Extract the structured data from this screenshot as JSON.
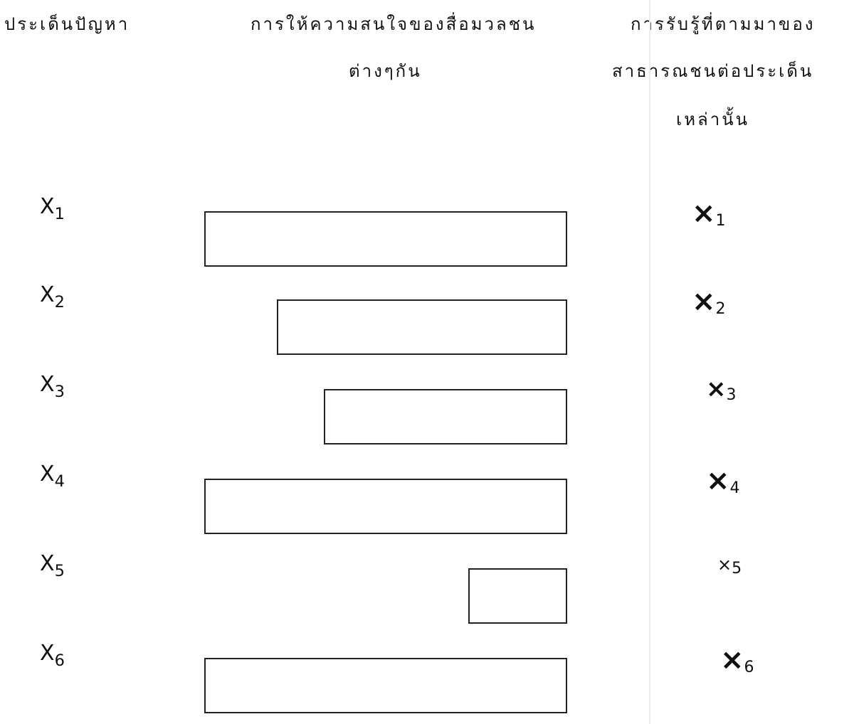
{
  "headers": {
    "issue": "ประเด็นปัญหา",
    "media_line1": "การให้ความสนใจของสื่อมวลชน",
    "media_line2": "ต่างๆกัน",
    "public_line1": "การรับรู้ที่ตามมาของ",
    "public_line2": "สาธารณชนต่อประเด็น",
    "public_line3": "เหล่านั้น"
  },
  "rows": [
    {
      "var": "X",
      "sub": "1",
      "media_attention": 1.0,
      "public_var": "X",
      "public_sub": "1",
      "public_size": "large"
    },
    {
      "var": "X",
      "sub": "2",
      "media_attention": 0.8,
      "public_var": "X",
      "public_sub": "2",
      "public_size": "large"
    },
    {
      "var": "X",
      "sub": "3",
      "media_attention": 0.67,
      "public_var": "X",
      "public_sub": "3",
      "public_size": "medium"
    },
    {
      "var": "X",
      "sub": "4",
      "media_attention": 1.0,
      "public_var": "X",
      "public_sub": "4",
      "public_size": "large"
    },
    {
      "var": "X",
      "sub": "5",
      "media_attention": 0.27,
      "public_var": "X",
      "public_sub": "5",
      "public_size": "small"
    },
    {
      "var": "X",
      "sub": "6",
      "media_attention": 1.0,
      "public_var": "X",
      "public_sub": "6",
      "public_size": "large"
    }
  ]
}
